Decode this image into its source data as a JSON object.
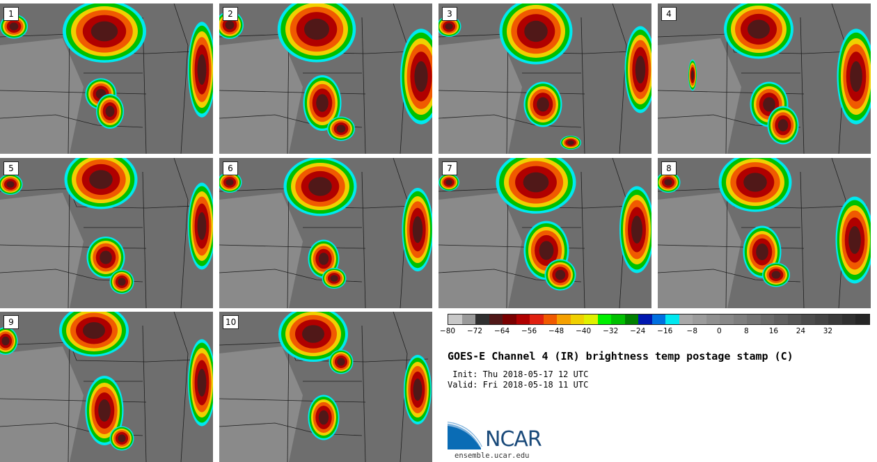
{
  "panels": [
    {
      "label": "1"
    },
    {
      "label": "2"
    },
    {
      "label": "3"
    },
    {
      "label": "4"
    },
    {
      "label": "5"
    },
    {
      "label": "6"
    },
    {
      "label": "7"
    },
    {
      "label": "8"
    },
    {
      "label": "9"
    },
    {
      "label": "10"
    }
  ],
  "colorbar": {
    "colors": [
      "#c8c8c8",
      "#9a9a9a",
      "#303030",
      "#501818",
      "#7a0000",
      "#b00000",
      "#e02010",
      "#f05a00",
      "#f5a000",
      "#f0d000",
      "#e0f000",
      "#00f000",
      "#00c000",
      "#008000",
      "#0018b0",
      "#0070e0",
      "#00e8f0",
      "#a8a8a8",
      "#9c9c9c",
      "#909090",
      "#888888",
      "#7e7e7e",
      "#747474",
      "#6a6a6a",
      "#606060",
      "#565656",
      "#4c4c4c",
      "#444444",
      "#3a3a3a",
      "#303030",
      "#262626"
    ],
    "ticks": [
      "−80",
      "−72",
      "−64",
      "−56",
      "−48",
      "−40",
      "−32",
      "−24",
      "−16",
      "−8",
      "0",
      "8",
      "16",
      "24",
      "32"
    ]
  },
  "title": "GOES-E Channel 4 (IR) brightness temp postage stamp (C)",
  "init": " Init: Thu 2018-05-17 12 UTC",
  "valid": "Valid: Fri 2018-05-18 11 UTC",
  "logo": {
    "text": "NCAR",
    "url": "ensemble.ucar.edu"
  }
}
